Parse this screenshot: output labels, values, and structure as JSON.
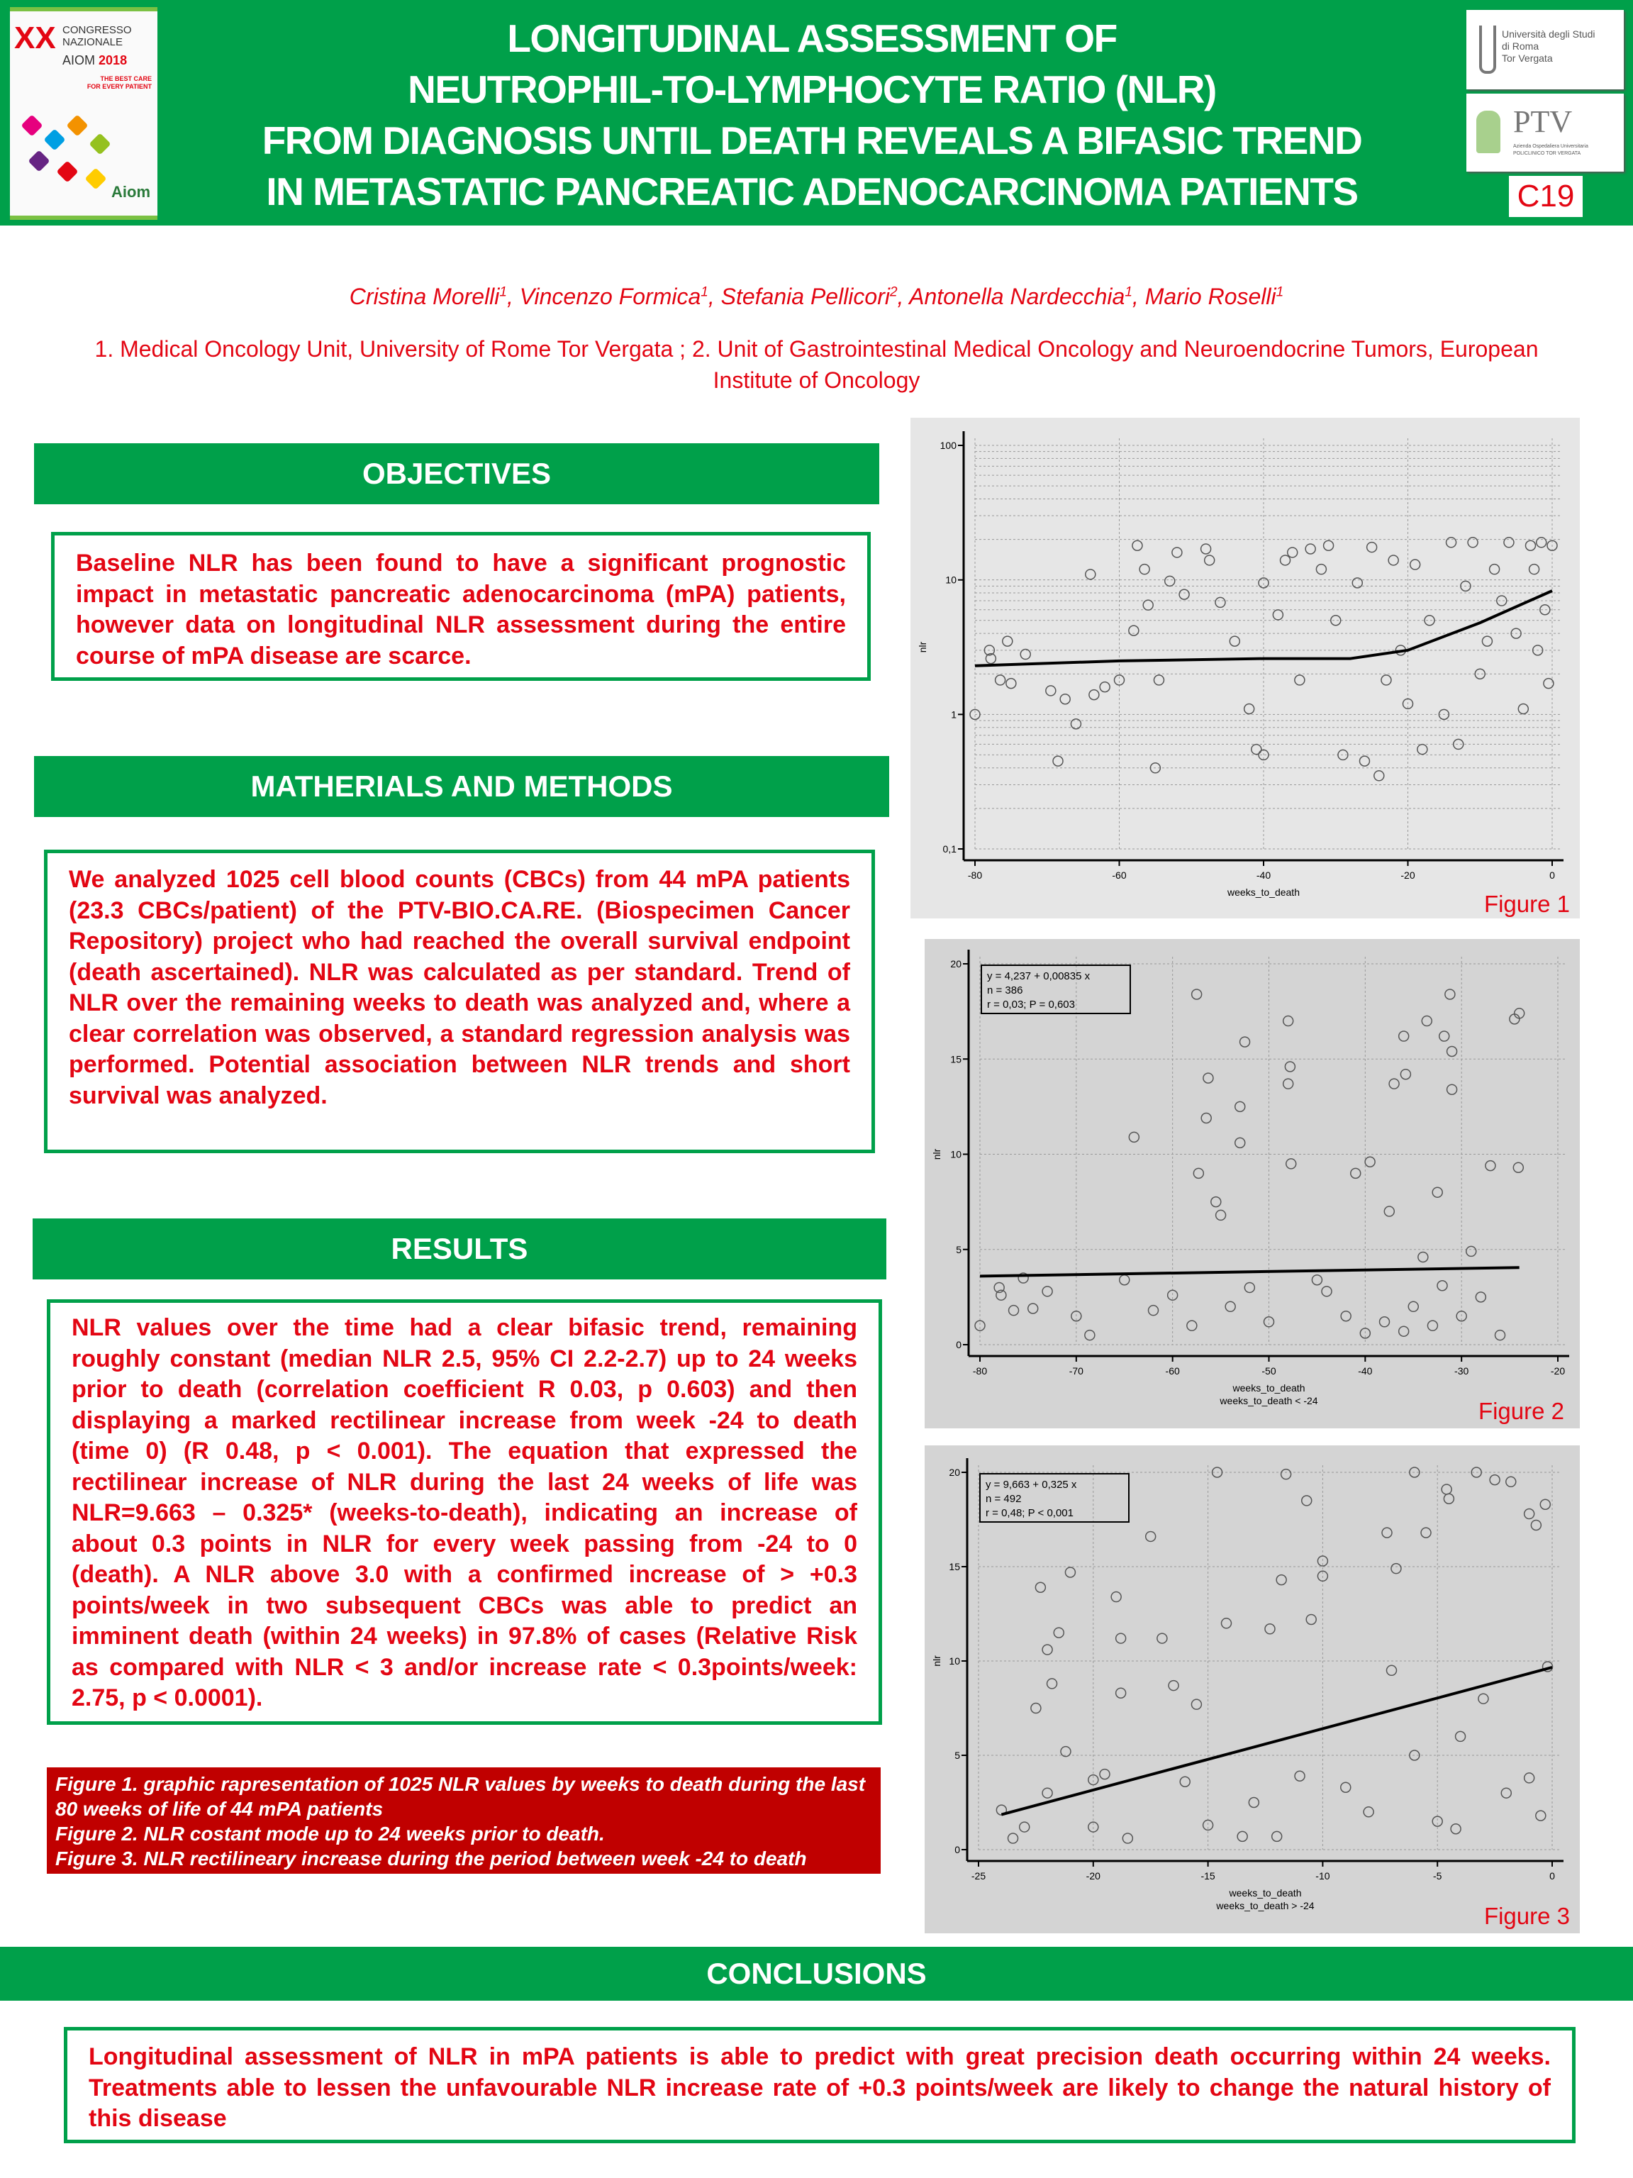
{
  "header": {
    "title_lines": [
      "LONGITUDINAL ASSESSMENT OF",
      "NEUTROPHIL-TO-LYMPHOCYTE RATIO (NLR)",
      "FROM DIAGNOSIS UNTIL DEATH REVEALS A BIFASIC TREND",
      "IN METASTATIC PANCREATIC ADENOCARCINOMA PATIENTS"
    ],
    "poster_code": "C19",
    "brand_color": "#00a04a",
    "text_color": "#e30613"
  },
  "logos": {
    "aiom": {
      "xx": "XX",
      "line1": "CONGRESSO",
      "line2": "NAZIONALE",
      "name": "AIOM",
      "year": "2018",
      "tagline1": "THE BEST CARE",
      "tagline2": "FOR EVERY PATIENT",
      "mark": "Aiom"
    },
    "tor_vergata": {
      "line1": "Università degli Studi",
      "line2": "di Roma",
      "line3": "Tor Vergata"
    },
    "ptv": {
      "name": "PTV",
      "sub1": "Azienda Ospedaliera Universitaria",
      "sub2": "POLICLINICO TOR VERGATA"
    }
  },
  "authors": [
    {
      "name": "Cristina Morelli",
      "aff": "1"
    },
    {
      "name": "Vincenzo Formica",
      "aff": "1"
    },
    {
      "name": "Stefania Pellicori",
      "aff": "2"
    },
    {
      "name": "Antonella Nardecchia",
      "aff": "1"
    },
    {
      "name": "Mario Roselli",
      "aff": "1"
    }
  ],
  "affiliations": "1. Medical Oncology Unit, University of Rome Tor Vergata ; 2. Unit of Gastrointestinal Medical Oncology and Neuroendocrine Tumors, European Institute of Oncology",
  "sections": {
    "objectives": {
      "title": "OBJECTIVES",
      "body": "Baseline NLR has been found to have a significant prognostic impact in metastatic pancreatic adenocarcinoma (mPA) patients, however data on longitudinal NLR assessment during the entire course of mPA disease are scarce."
    },
    "methods": {
      "title": "MATHERIALS AND METHODS",
      "body": "We analyzed 1025 cell blood counts (CBCs) from 44 mPA patients (23.3 CBCs/patient) of the PTV-BIO.CA.RE. (Biospecimen Cancer Repository) project who had reached the overall survival endpoint (death ascertained). NLR was calculated as per standard. Trend of NLR over the remaining weeks to death was analyzed and, where a clear correlation was observed, a standard regression analysis was performed. Potential association between NLR trends and short survival was analyzed."
    },
    "results": {
      "title": "RESULTS",
      "body": "NLR values over the time had a clear bifasic trend, remaining roughly constant (median NLR 2.5, 95% CI 2.2-2.7) up to 24 weeks prior to death (correlation coefficient R 0.03, p 0.603) and then displaying a marked rectilinear increase from week -24 to death (time 0) (R 0.48, p < 0.001). The equation that expressed the rectilinear increase of NLR during the last 24 weeks of life was NLR=9.663 – 0.325* (weeks-to-death), indicating an increase of about 0.3 points in NLR for every week passing from -24 to 0 (death). A NLR above 3.0 with a confirmed increase of > +0.3 points/week in two subsequent CBCs was able to predict an imminent death (within 24 weeks) in 97.8% of cases (Relative Risk as compared with NLR < 3 and/or increase rate < 0.3points/week: 2.75, p < 0.0001)."
    },
    "conclusions": {
      "title": "CONCLUSIONS",
      "body": "Longitudinal assessment of NLR in mPA patients is able to predict with great precision death occurring within 24 weeks. Treatments able to lessen the unfavourable NLR increase rate of +0.3 points/week are likely to change the natural history of this disease"
    }
  },
  "captions": [
    "Figure 1. graphic rapresentation of 1025 NLR values by weeks to death during the last 80 weeks of life of 44 mPA patients",
    "Figure 2. NLR costant mode up to 24 weeks prior to death.",
    "Figure 3. NLR rectilineary increase during the period between week -24 to death"
  ],
  "chart_data": [
    {
      "id": "fig1",
      "label": "Figure 1",
      "type": "scatter",
      "xlabel": "weeks_to_death",
      "ylabel": "nlr",
      "xlim": [
        -80,
        0
      ],
      "ylim": [
        0.1,
        100
      ],
      "yscale": "log",
      "xticks": [
        -80,
        -60,
        -40,
        -20,
        0
      ],
      "yticks": [
        0.1,
        1,
        10,
        100
      ],
      "ytick_labels": [
        "0,1",
        "1",
        "10",
        "100"
      ],
      "grid": true,
      "trend": [
        [
          -80,
          2.3
        ],
        [
          -60,
          2.5
        ],
        [
          -40,
          2.6
        ],
        [
          -28,
          2.6
        ],
        [
          -20,
          3.0
        ],
        [
          -10,
          4.8
        ],
        [
          0,
          8.3
        ]
      ],
      "points": [
        [
          -80,
          1
        ],
        [
          -78,
          3
        ],
        [
          -77.8,
          2.6
        ],
        [
          -76.5,
          1.8
        ],
        [
          -75.5,
          3.5
        ],
        [
          -75,
          1.7
        ],
        [
          -73,
          2.8
        ],
        [
          -69.5,
          1.5
        ],
        [
          -68.5,
          0.45
        ],
        [
          -67.5,
          1.3
        ],
        [
          -66,
          0.85
        ],
        [
          -64,
          11
        ],
        [
          -63.5,
          1.4
        ],
        [
          -62,
          1.6
        ],
        [
          -60,
          1.8
        ],
        [
          -58,
          4.2
        ],
        [
          -57.5,
          18
        ],
        [
          -56.5,
          12
        ],
        [
          -56,
          6.5
        ],
        [
          -55,
          0.4
        ],
        [
          -54.5,
          1.8
        ],
        [
          -53,
          9.8
        ],
        [
          -52,
          16
        ],
        [
          -51,
          7.8
        ],
        [
          -48,
          17
        ],
        [
          -47.5,
          14
        ],
        [
          -46,
          6.8
        ],
        [
          -44,
          3.5
        ],
        [
          -42,
          1.1
        ],
        [
          -41,
          0.55
        ],
        [
          -40,
          9.5
        ],
        [
          -40,
          0.5
        ],
        [
          -38,
          5.5
        ],
        [
          -37,
          14
        ],
        [
          -36,
          16
        ],
        [
          -35,
          1.8
        ],
        [
          -33.5,
          17
        ],
        [
          -32,
          12
        ],
        [
          -31,
          18
        ],
        [
          -30,
          5
        ],
        [
          -29,
          0.5
        ],
        [
          -27,
          9.5
        ],
        [
          -26,
          0.45
        ],
        [
          -25,
          17.5
        ],
        [
          -24,
          0.35
        ],
        [
          -23,
          1.8
        ],
        [
          -22,
          14
        ],
        [
          -21,
          3
        ],
        [
          -20,
          1.2
        ],
        [
          -19,
          13
        ],
        [
          -18,
          0.55
        ],
        [
          -17,
          5
        ],
        [
          -15,
          1
        ],
        [
          -14,
          19
        ],
        [
          -13,
          0.6
        ],
        [
          -12,
          9
        ],
        [
          -11,
          19
        ],
        [
          -10,
          2
        ],
        [
          -9,
          3.5
        ],
        [
          -8,
          12
        ],
        [
          -7,
          7
        ],
        [
          -6,
          19
        ],
        [
          -5,
          4
        ],
        [
          -4,
          1.1
        ],
        [
          -3,
          18
        ],
        [
          -2.5,
          12
        ],
        [
          -2,
          3
        ],
        [
          -1.5,
          19
        ],
        [
          -1,
          6
        ],
        [
          -0.5,
          1.7
        ],
        [
          0,
          18
        ]
      ]
    },
    {
      "id": "fig2",
      "label": "Figure 2",
      "type": "scatter",
      "xlabel": "weeks_to_death",
      "subtitle": "weeks_to_death < -24",
      "ylabel": "nlr",
      "xlim": [
        -80,
        -20
      ],
      "ylim": [
        0,
        20
      ],
      "xticks": [
        -80,
        -70,
        -60,
        -50,
        -40,
        -30,
        -20
      ],
      "yticks": [
        0,
        5,
        10,
        15,
        20
      ],
      "grid": true,
      "legend": [
        "y = 4,237  +  0,00835  x",
        "n = 386",
        "r = 0,03; P = 0,603"
      ],
      "trend": [
        [
          -80,
          3.6
        ],
        [
          -24,
          4.05
        ]
      ],
      "points": [
        [
          -80,
          1
        ],
        [
          -78,
          3
        ],
        [
          -77.8,
          2.6
        ],
        [
          -76.5,
          1.8
        ],
        [
          -75.5,
          3.5
        ],
        [
          -74.5,
          1.9
        ],
        [
          -73,
          2.8
        ],
        [
          -70,
          1.5
        ],
        [
          -68.6,
          0.5
        ],
        [
          -65,
          3.4
        ],
        [
          -64,
          10.9
        ],
        [
          -60,
          2.6
        ],
        [
          -57.5,
          18.4
        ],
        [
          -57.3,
          9
        ],
        [
          -56.5,
          11.9
        ],
        [
          -56.3,
          14
        ],
        [
          -55.5,
          7.5
        ],
        [
          -55,
          6.8
        ],
        [
          -52.5,
          15.9
        ],
        [
          -53,
          12.5
        ],
        [
          -53,
          10.6
        ],
        [
          -48,
          17
        ],
        [
          -47.8,
          14.6
        ],
        [
          -48,
          13.7
        ],
        [
          -47.7,
          9.5
        ],
        [
          -45,
          3.4
        ],
        [
          -41,
          9
        ],
        [
          -39.5,
          9.6
        ],
        [
          -37,
          13.7
        ],
        [
          -36,
          16.2
        ],
        [
          -35.8,
          14.2
        ],
        [
          -33.6,
          17
        ],
        [
          -31.8,
          16.2
        ],
        [
          -31,
          15.4
        ],
        [
          -31.2,
          18.4
        ],
        [
          -31,
          13.4
        ],
        [
          -24.5,
          17.1
        ],
        [
          -24,
          17.4
        ],
        [
          -24.1,
          9.3
        ],
        [
          -27,
          9.4
        ],
        [
          -40,
          0.6
        ],
        [
          -38,
          1.2
        ],
        [
          -35,
          2
        ],
        [
          -33,
          1
        ],
        [
          -30,
          1.5
        ],
        [
          -28,
          2.5
        ],
        [
          -26,
          0.5
        ],
        [
          -42,
          1.5
        ],
        [
          -44,
          2.8
        ],
        [
          -50,
          1.2
        ],
        [
          -52,
          3
        ],
        [
          -54,
          2
        ],
        [
          -58,
          1
        ],
        [
          -62,
          1.8
        ],
        [
          -36,
          0.7
        ],
        [
          -32,
          3.1
        ],
        [
          -29,
          4.9
        ],
        [
          -34,
          4.6
        ],
        [
          -37.5,
          7
        ],
        [
          -32.5,
          8
        ]
      ]
    },
    {
      "id": "fig3",
      "label": "Figure 3",
      "type": "scatter",
      "xlabel": "weeks_to_death",
      "subtitle": "weeks_to_death > -24",
      "ylabel": "nlr",
      "xlim": [
        -25,
        0
      ],
      "ylim": [
        0,
        20
      ],
      "xticks": [
        -25,
        -20,
        -15,
        -10,
        -5,
        0
      ],
      "yticks": [
        0,
        5,
        10,
        15,
        20
      ],
      "grid": true,
      "legend": [
        "y = 9,663  +  0,325  x",
        "n = 492",
        "r = 0,48; P < 0,001"
      ],
      "trend": [
        [
          -24,
          1.86
        ],
        [
          0,
          9.663
        ]
      ],
      "points": [
        [
          -24,
          2.1
        ],
        [
          -23.5,
          0.6
        ],
        [
          -22.5,
          7.5
        ],
        [
          -22.3,
          13.9
        ],
        [
          -22,
          10.6
        ],
        [
          -21.5,
          11.5
        ],
        [
          -21,
          14.7
        ],
        [
          -21.8,
          8.8
        ],
        [
          -21.2,
          5.2
        ],
        [
          -20,
          3.7
        ],
        [
          -19,
          13.4
        ],
        [
          -18.8,
          11.2
        ],
        [
          -18.8,
          8.3
        ],
        [
          -17.5,
          16.6
        ],
        [
          -17,
          11.2
        ],
        [
          -16.5,
          8.7
        ],
        [
          -15.5,
          7.7
        ],
        [
          -14.6,
          20
        ],
        [
          -14.2,
          12
        ],
        [
          -12.3,
          11.7
        ],
        [
          -11.6,
          19.9
        ],
        [
          -11.8,
          14.3
        ],
        [
          -10.7,
          18.5
        ],
        [
          -10.5,
          12.2
        ],
        [
          -10,
          15.3
        ],
        [
          -10,
          14.5
        ],
        [
          -7.2,
          16.8
        ],
        [
          -6.8,
          14.9
        ],
        [
          -6,
          20
        ],
        [
          -5.5,
          16.8
        ],
        [
          -4.6,
          19.1
        ],
        [
          -4.5,
          18.6
        ],
        [
          -3.3,
          20
        ],
        [
          -2.5,
          19.6
        ],
        [
          -1.8,
          19.5
        ],
        [
          -0.3,
          18.3
        ],
        [
          -1,
          17.8
        ],
        [
          -0.7,
          17.2
        ],
        [
          -2,
          3
        ],
        [
          -5,
          1.5
        ],
        [
          -8,
          2
        ],
        [
          -12,
          0.7
        ],
        [
          -13.5,
          0.7
        ],
        [
          -15,
          1.3
        ],
        [
          -18.5,
          0.6
        ],
        [
          -20,
          1.2
        ],
        [
          -16,
          3.6
        ],
        [
          -9,
          3.3
        ],
        [
          -6,
          5
        ],
        [
          -3,
          8
        ],
        [
          -4,
          6
        ],
        [
          -7,
          9.5
        ],
        [
          -1,
          3.8
        ],
        [
          -0.2,
          9.7
        ],
        [
          -4.2,
          1.1
        ],
        [
          -0.5,
          1.8
        ],
        [
          -11,
          3.9
        ],
        [
          -13,
          2.5
        ],
        [
          -19.5,
          4
        ],
        [
          -22,
          3
        ],
        [
          -23,
          1.2
        ]
      ]
    }
  ]
}
